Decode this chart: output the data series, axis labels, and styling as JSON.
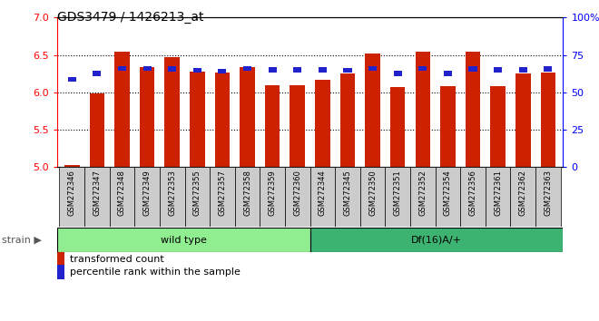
{
  "title": "GDS3479 / 1426213_at",
  "samples": [
    "GSM272346",
    "GSM272347",
    "GSM272348",
    "GSM272349",
    "GSM272353",
    "GSM272355",
    "GSM272357",
    "GSM272358",
    "GSM272359",
    "GSM272360",
    "GSM272344",
    "GSM272345",
    "GSM272350",
    "GSM272351",
    "GSM272352",
    "GSM272354",
    "GSM272356",
    "GSM272361",
    "GSM272362",
    "GSM272363"
  ],
  "red_values": [
    5.02,
    5.99,
    6.54,
    6.34,
    6.47,
    6.28,
    6.27,
    6.34,
    6.1,
    6.1,
    6.17,
    6.25,
    6.52,
    6.07,
    6.54,
    6.08,
    6.54,
    6.08,
    6.25,
    6.26
  ],
  "blue_values": [
    6.14,
    6.22,
    6.29,
    6.29,
    6.28,
    6.26,
    6.25,
    6.29,
    6.27,
    6.27,
    6.27,
    6.26,
    6.29,
    6.22,
    6.29,
    6.22,
    6.28,
    6.27,
    6.27,
    6.28
  ],
  "groups": [
    {
      "label": "wild type",
      "start": 0,
      "end": 10,
      "color": "#90ee90"
    },
    {
      "label": "Df(16)A/+",
      "start": 10,
      "end": 20,
      "color": "#3cb371"
    }
  ],
  "ylim_left": [
    5.0,
    7.0
  ],
  "ylim_right": [
    0,
    100
  ],
  "yticks_left": [
    5.0,
    5.5,
    6.0,
    6.5,
    7.0
  ],
  "yticks_right": [
    0,
    25,
    50,
    75,
    100
  ],
  "ytick_labels_right": [
    "0",
    "25",
    "50",
    "75",
    "100%"
  ],
  "bar_color": "#cc2200",
  "blue_color": "#2222cc",
  "background_color": "#ffffff",
  "plot_bg_color": "#ffffff",
  "legend_red": "transformed count",
  "legend_blue": "percentile rank within the sample",
  "strain_label": "strain",
  "grid_lines": [
    5.5,
    6.0,
    6.5
  ],
  "tick_label_bg": "#cccccc"
}
